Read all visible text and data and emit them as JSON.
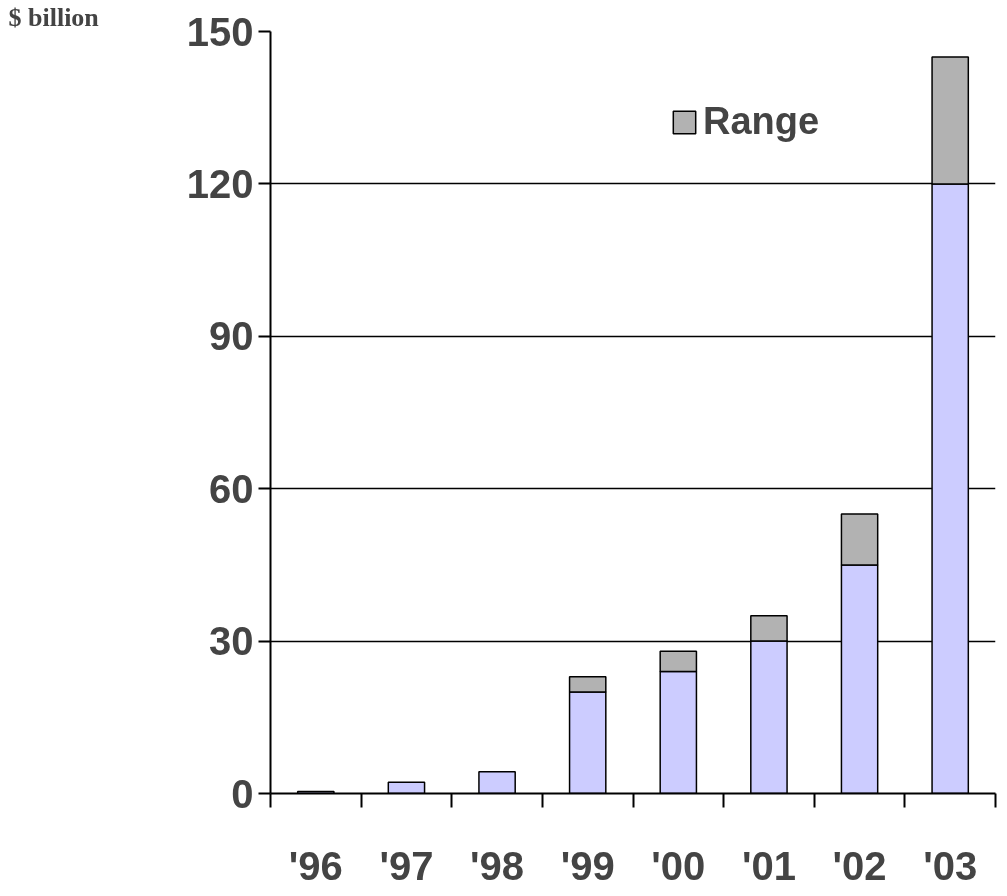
{
  "chart_data": {
    "type": "bar",
    "stacked": true,
    "ylabel": "$ billion",
    "categories": [
      "'96",
      "'97",
      "'98",
      "'99",
      "'00",
      "'01",
      "'02",
      "'03"
    ],
    "series": [
      {
        "color": "#ccccff",
        "values": [
          0.4,
          2.2,
          4.3,
          20,
          24,
          30,
          45,
          120
        ]
      },
      {
        "name": "Range",
        "color": "#b2b2b2",
        "values": [
          null,
          null,
          null,
          3,
          4,
          5,
          10,
          25
        ]
      }
    ],
    "ylim": [
      0,
      150
    ],
    "yticks": [
      0,
      30,
      60,
      90,
      120,
      150
    ],
    "grid": "y",
    "legend": "top right"
  }
}
